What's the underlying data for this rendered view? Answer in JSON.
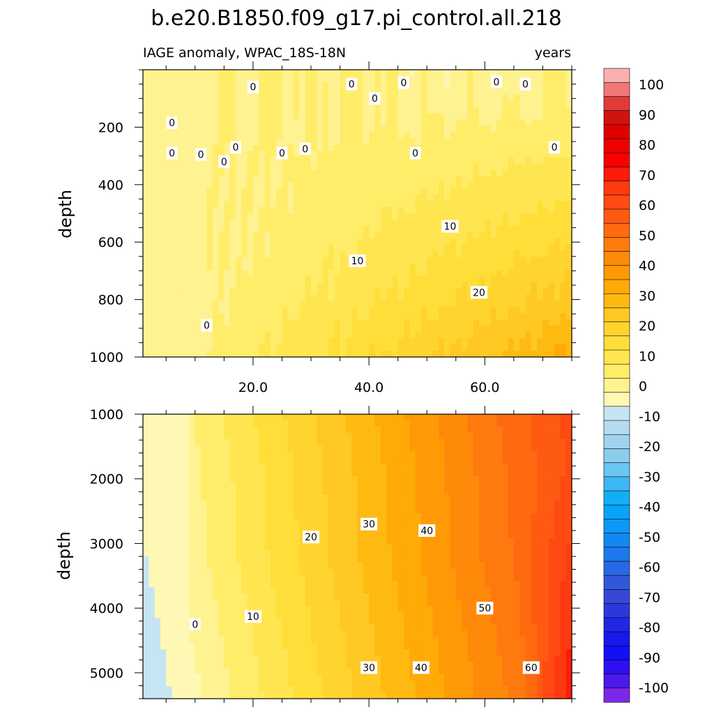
{
  "chart_data": {
    "type": "heatmap",
    "title": "b.e20.B1850.f09_g17.pi_control.all.218",
    "left_subtitle": "IAGE anomaly, WPAC_18S-18N",
    "right_subtitle": "years",
    "x_ticks": [
      20.0,
      40.0,
      60.0
    ],
    "x_tick_labels": [
      "20.0",
      "40.0",
      "60.0"
    ],
    "xlim": [
      1,
      75
    ],
    "panels": [
      {
        "name": "upper",
        "ylabel": "depth",
        "ylim": [
          0,
          1000
        ],
        "y_ticks": [
          200,
          400,
          600,
          800,
          1000
        ],
        "y_tick_labels": [
          "200",
          "400",
          "600",
          "800",
          "1000"
        ],
        "contour_labels": [
          {
            "text": "0",
            "x": 6,
            "y": 185
          },
          {
            "text": "0",
            "x": 6,
            "y": 290
          },
          {
            "text": "0",
            "x": 11,
            "y": 295
          },
          {
            "text": "0",
            "x": 15,
            "y": 320
          },
          {
            "text": "0",
            "x": 17,
            "y": 270
          },
          {
            "text": "0",
            "x": 20,
            "y": 60
          },
          {
            "text": "0",
            "x": 25,
            "y": 290
          },
          {
            "text": "0",
            "x": 29,
            "y": 275
          },
          {
            "text": "0",
            "x": 37,
            "y": 50
          },
          {
            "text": "0",
            "x": 41,
            "y": 100
          },
          {
            "text": "0",
            "x": 46,
            "y": 45
          },
          {
            "text": "0",
            "x": 48,
            "y": 290
          },
          {
            "text": "0",
            "x": 62,
            "y": 42
          },
          {
            "text": "0",
            "x": 67,
            "y": 50
          },
          {
            "text": "0",
            "x": 72,
            "y": 270
          },
          {
            "text": "0",
            "x": 12,
            "y": 890
          },
          {
            "text": "10",
            "x": 38,
            "y": 665
          },
          {
            "text": "10",
            "x": 54,
            "y": 545
          },
          {
            "text": "20",
            "x": 59,
            "y": 775
          }
        ]
      },
      {
        "name": "lower",
        "ylabel": "depth",
        "ylim": [
          1000,
          5400
        ],
        "y_ticks": [
          1000,
          2000,
          3000,
          4000,
          5000
        ],
        "y_tick_labels": [
          "1000",
          "2000",
          "3000",
          "4000",
          "5000"
        ],
        "contour_labels": [
          {
            "text": "0",
            "x": 10,
            "y": 4250
          },
          {
            "text": "10",
            "x": 20,
            "y": 4130
          },
          {
            "text": "20",
            "x": 30,
            "y": 2900
          },
          {
            "text": "30",
            "x": 40,
            "y": 2700
          },
          {
            "text": "40",
            "x": 50,
            "y": 2800
          },
          {
            "text": "30",
            "x": 40,
            "y": 4920
          },
          {
            "text": "40",
            "x": 49,
            "y": 4920
          },
          {
            "text": "50",
            "x": 60,
            "y": 4000
          },
          {
            "text": "60",
            "x": 68,
            "y": 4920
          }
        ]
      }
    ],
    "colorbar": {
      "labels": [
        "100",
        "90",
        "80",
        "70",
        "60",
        "50",
        "40",
        "30",
        "20",
        "10",
        "0",
        "-10",
        "-20",
        "-30",
        "-40",
        "-50",
        "-60",
        "-70",
        "-80",
        "-90",
        "-100"
      ],
      "colors": [
        "#fbb0b0",
        "#f07878",
        "#e03a3a",
        "#d21111",
        "#e00000",
        "#ee0000",
        "#fa0000",
        "#ff1a0a",
        "#ff3a10",
        "#ff4a12",
        "#ff5a12",
        "#ff6a10",
        "#ff7a0e",
        "#ff8a0a",
        "#ff9a06",
        "#ffaa06",
        "#ffba12",
        "#ffc822",
        "#ffd42e",
        "#ffde3a",
        "#ffe650",
        "#ffed6a",
        "#fff290",
        "#fff8b4",
        "#c7e4f4",
        "#b3dcf0",
        "#a0d4ee",
        "#8cccec",
        "#6cc4f0",
        "#3cb8f4",
        "#10b0f8",
        "#08a4f8",
        "#0c98f4",
        "#1488f0",
        "#1c78ec",
        "#2868e4",
        "#3058dc",
        "#3848d4",
        "#2c38dc",
        "#2028e4",
        "#1818ec",
        "#1010f4",
        "#2c10f0",
        "#4c18ec",
        "#7c28e8"
      ]
    }
  }
}
